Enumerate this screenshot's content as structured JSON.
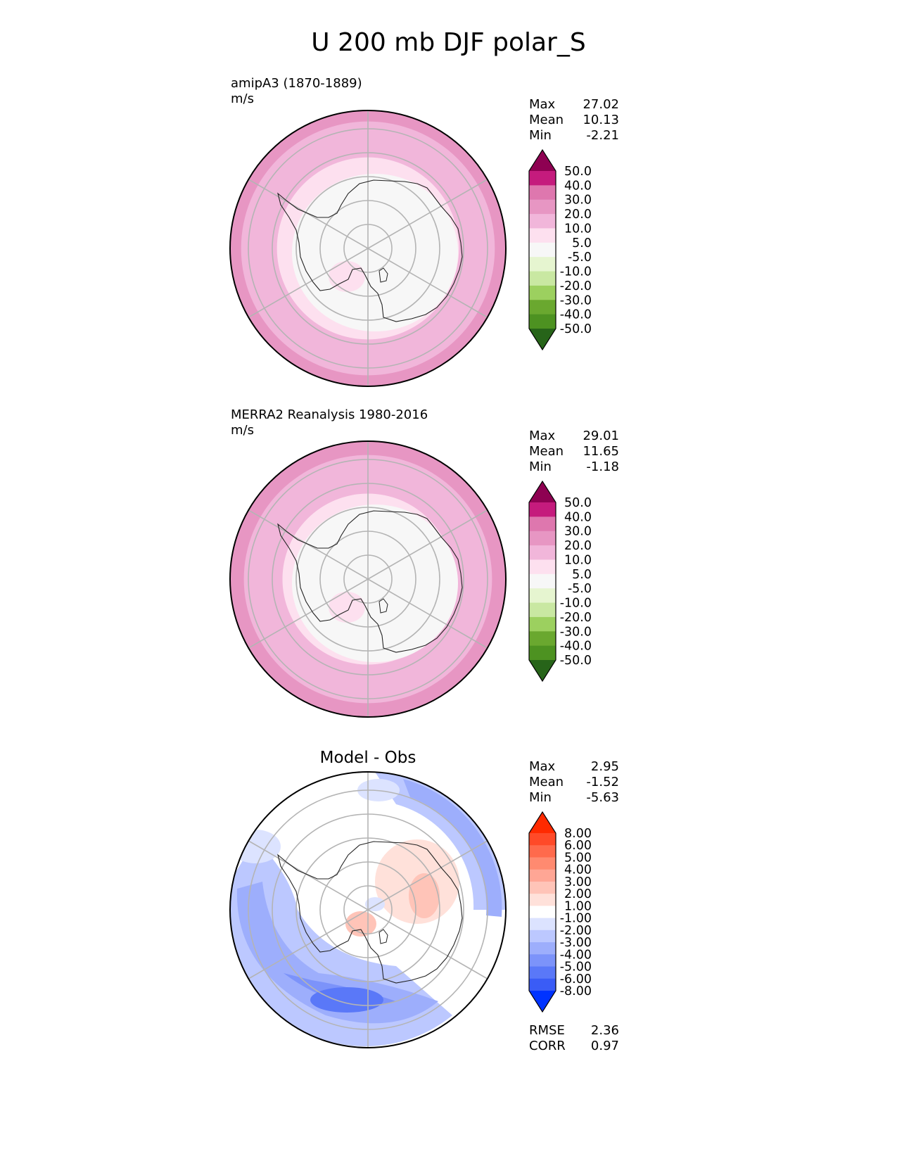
{
  "chart_data": {
    "title": "U 200 mb DJF polar_S",
    "panels": [
      {
        "id": "test",
        "type": "heatmap",
        "label": "amipA3 (1870-1889)",
        "units": "m/s",
        "stats": {
          "max_label": "Max",
          "max": "27.02",
          "mean_label": "Mean",
          "mean": "10.13",
          "min_label": "Min",
          "min": "-2.21"
        },
        "colorbar": {
          "levels": [
            "50.0",
            "40.0",
            "30.0",
            "20.0",
            "10.0",
            "5.0",
            "-5.0",
            "-10.0",
            "-20.0",
            "-30.0",
            "-40.0",
            "-50.0"
          ],
          "colors": [
            "#8e0152",
            "#c51b7d",
            "#de77ae",
            "#e796c3",
            "#f1b6da",
            "#fde0ef",
            "#f7f7f7",
            "#e6f5d0",
            "#c9e8a2",
            "#9cd05f",
            "#6aa82f",
            "#4d9221",
            "#276419"
          ]
        },
        "rings_fraction": [
          1.0,
          0.92,
          0.8,
          0.66,
          0.58,
          0.42,
          0.26
        ],
        "ring_colors": [
          "#e796c3",
          "#f1b6da",
          "#f1b6da",
          "#fde0ef",
          "#fde0ef",
          "#f7f7f7",
          "#f7f7f7"
        ]
      },
      {
        "id": "reference",
        "type": "heatmap",
        "label": "MERRA2 Reanalysis 1980-2016",
        "units": "m/s",
        "stats": {
          "max_label": "Max",
          "max": "29.01",
          "mean_label": "Mean",
          "mean": "11.65",
          "min_label": "Min",
          "min": "-1.18"
        },
        "colorbar": {
          "levels": [
            "50.0",
            "40.0",
            "30.0",
            "20.0",
            "10.0",
            "5.0",
            "-5.0",
            "-10.0",
            "-20.0",
            "-30.0",
            "-40.0",
            "-50.0"
          ],
          "colors": [
            "#8e0152",
            "#c51b7d",
            "#de77ae",
            "#e796c3",
            "#f1b6da",
            "#fde0ef",
            "#f7f7f7",
            "#e6f5d0",
            "#c9e8a2",
            "#9cd05f",
            "#6aa82f",
            "#4d9221",
            "#276419"
          ]
        },
        "rings_fraction": [
          1.0,
          0.9,
          0.76,
          0.62,
          0.44
        ],
        "ring_colors": [
          "#e796c3",
          "#f1b6da",
          "#f1b6da",
          "#fde0ef",
          "#f7f7f7"
        ]
      },
      {
        "id": "diff",
        "type": "heatmap",
        "label": "Model - Obs",
        "stats": {
          "max_label": "Max",
          "max": "2.95",
          "mean_label": "Mean",
          "mean": "-1.52",
          "min_label": "Min",
          "min": "-5.63"
        },
        "colorbar": {
          "levels": [
            "8.00",
            "6.00",
            "5.00",
            "4.00",
            "3.00",
            "2.00",
            "1.00",
            "-1.00",
            "-2.00",
            "-3.00",
            "-4.00",
            "-5.00",
            "-6.00",
            "-8.00"
          ],
          "colors": [
            "#ff2a00",
            "#ff4a28",
            "#ff6a4c",
            "#ff8a70",
            "#ffa695",
            "#ffc4b8",
            "#ffe1da",
            "#ffffff",
            "#dce3ff",
            "#bcc8ff",
            "#9daefc",
            "#7c93fa",
            "#5a78f8",
            "#3a5cf6",
            "#0033ff"
          ]
        },
        "metrics": {
          "rmse_label": "RMSE",
          "rmse": "2.36",
          "corr_label": "CORR",
          "corr": "0.97"
        }
      }
    ]
  }
}
